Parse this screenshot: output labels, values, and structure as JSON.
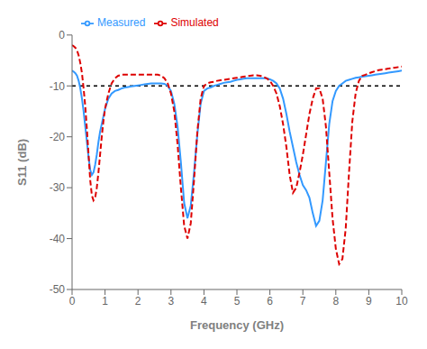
{
  "chart_data": {
    "type": "line",
    "xlabel": "Frequency (GHz)",
    "ylabel": "S11 (dB)",
    "xlim": [
      0,
      10
    ],
    "ylim": [
      -50,
      0
    ],
    "xticks": [
      0,
      1,
      2,
      3,
      4,
      5,
      6,
      7,
      8,
      9,
      10
    ],
    "yticks": [
      0,
      -10,
      -20,
      -30,
      -40,
      -50
    ],
    "hline": -10,
    "grid": false,
    "legend": "upper left",
    "x": [
      0.0,
      0.05,
      0.1,
      0.15,
      0.2,
      0.25,
      0.3,
      0.35,
      0.4,
      0.45,
      0.5,
      0.55,
      0.6,
      0.65,
      0.7,
      0.75,
      0.8,
      0.85,
      0.9,
      0.95,
      1.0,
      1.1,
      1.2,
      1.3,
      1.4,
      1.5,
      1.6,
      1.7,
      1.8,
      1.9,
      2.0,
      2.1,
      2.2,
      2.3,
      2.4,
      2.5,
      2.6,
      2.7,
      2.8,
      2.9,
      3.0,
      3.1,
      3.2,
      3.3,
      3.4,
      3.5,
      3.6,
      3.7,
      3.8,
      3.9,
      4.0,
      4.1,
      4.2,
      4.3,
      4.4,
      4.5,
      4.6,
      4.7,
      4.8,
      4.9,
      5.0,
      5.1,
      5.2,
      5.3,
      5.4,
      5.5,
      5.6,
      5.7,
      5.8,
      5.9,
      6.0,
      6.1,
      6.2,
      6.3,
      6.4,
      6.5,
      6.6,
      6.7,
      6.8,
      6.9,
      7.0,
      7.1,
      7.2,
      7.3,
      7.4,
      7.5,
      7.6,
      7.7,
      7.8,
      7.9,
      8.0,
      8.1,
      8.2,
      8.3,
      8.4,
      8.5,
      8.6,
      8.7,
      8.8,
      8.9,
      9.0,
      9.1,
      9.2,
      9.3,
      9.4,
      9.5,
      9.6,
      9.7,
      9.8,
      9.9,
      10.0
    ],
    "series": [
      {
        "name": "Measured",
        "color": "#3399FF",
        "line_style": "solid",
        "values": [
          -7.0,
          -7.2,
          -7.5,
          -8.0,
          -9.0,
          -10.5,
          -12.5,
          -15.0,
          -18.0,
          -21.0,
          -24.0,
          -26.5,
          -27.5,
          -27.0,
          -25.5,
          -23.5,
          -21.0,
          -19.0,
          -17.5,
          -16.0,
          -14.5,
          -12.5,
          -11.5,
          -11.0,
          -10.8,
          -10.5,
          -10.3,
          -10.2,
          -10.1,
          -10.0,
          -9.9,
          -9.8,
          -9.7,
          -9.6,
          -9.5,
          -9.5,
          -9.5,
          -9.5,
          -9.6,
          -10.0,
          -11.0,
          -13.5,
          -18.0,
          -25.0,
          -33.0,
          -36.0,
          -33.5,
          -27.0,
          -19.5,
          -13.5,
          -11.0,
          -10.5,
          -10.3,
          -10.0,
          -9.8,
          -9.6,
          -9.4,
          -9.3,
          -9.2,
          -9.0,
          -8.8,
          -8.7,
          -8.6,
          -8.5,
          -8.5,
          -8.5,
          -8.5,
          -8.5,
          -8.5,
          -8.5,
          -8.7,
          -9.0,
          -9.5,
          -10.5,
          -12.5,
          -15.5,
          -19.0,
          -22.0,
          -25.0,
          -27.5,
          -29.5,
          -30.5,
          -32.0,
          -35.0,
          -37.5,
          -36.5,
          -32.5,
          -25.0,
          -17.5,
          -13.0,
          -11.0,
          -10.0,
          -9.5,
          -9.0,
          -8.8,
          -8.6,
          -8.4,
          -8.3,
          -8.2,
          -8.1,
          -8.0,
          -7.9,
          -7.8,
          -7.7,
          -7.6,
          -7.5,
          -7.4,
          -7.3,
          -7.2,
          -7.1,
          -7.0
        ]
      },
      {
        "name": "Simulated",
        "color": "#DD0000",
        "line_style": "dashed",
        "values": [
          -2.0,
          -2.2,
          -2.5,
          -3.0,
          -4.0,
          -5.5,
          -7.5,
          -10.5,
          -14.0,
          -18.5,
          -23.5,
          -28.5,
          -31.5,
          -32.5,
          -32.0,
          -30.0,
          -27.0,
          -23.5,
          -20.0,
          -17.0,
          -14.5,
          -11.5,
          -9.5,
          -8.5,
          -8.0,
          -7.8,
          -7.8,
          -7.8,
          -7.8,
          -7.8,
          -7.8,
          -7.8,
          -7.8,
          -7.8,
          -7.8,
          -7.8,
          -7.8,
          -8.0,
          -8.5,
          -9.5,
          -11.5,
          -15.0,
          -21.5,
          -30.0,
          -37.5,
          -40.0,
          -37.0,
          -28.5,
          -19.0,
          -12.5,
          -10.0,
          -9.5,
          -9.3,
          -9.2,
          -9.0,
          -8.9,
          -8.8,
          -8.7,
          -8.6,
          -8.5,
          -8.4,
          -8.3,
          -8.2,
          -8.1,
          -8.0,
          -7.9,
          -7.9,
          -8.0,
          -8.2,
          -8.5,
          -9.0,
          -10.0,
          -11.5,
          -14.0,
          -17.5,
          -22.0,
          -27.5,
          -31.0,
          -30.0,
          -27.0,
          -23.5,
          -19.5,
          -15.5,
          -12.5,
          -10.5,
          -10.5,
          -12.5,
          -18.0,
          -27.0,
          -36.0,
          -42.0,
          -45.0,
          -44.0,
          -38.0,
          -27.0,
          -17.0,
          -11.5,
          -9.0,
          -8.0,
          -7.8,
          -7.5,
          -7.3,
          -7.1,
          -6.9,
          -6.8,
          -6.7,
          -6.6,
          -6.5,
          -6.4,
          -6.3,
          -6.2
        ]
      }
    ]
  }
}
